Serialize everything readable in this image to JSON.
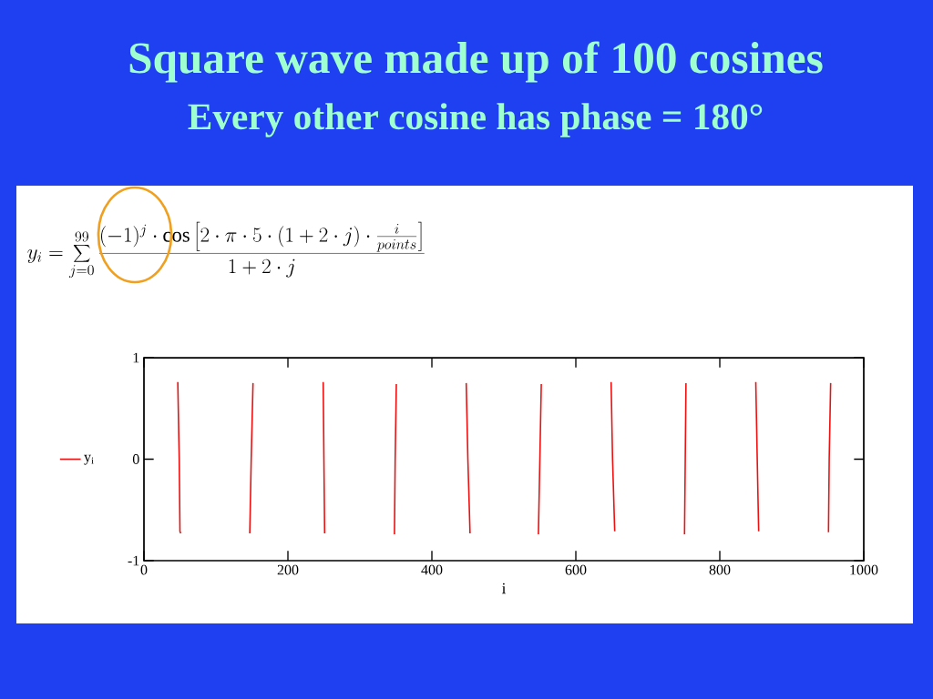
{
  "chart_data": {
    "type": "line",
    "title": "Square wave made up of 100 cosines",
    "subtitle": "Every other cosine has phase = 180°",
    "xlabel": "i",
    "annotations": [
      "y_{i} = \\sum_{j=0}^{99} \\frac{(-1)^{j}\\cdot\\cos\\left[2\\cdot\\pi\\cdot 5\\cdot(1+2\\cdot j)\\cdot\\frac{i}{points}\\right]}{1+2\\cdot j}"
    ],
    "series": [
      {
        "name": "y$_{i}$",
        "color": "#ee1111",
        "x": [
          47,
          49,
          50,
          51,
          100,
          151.5,
          149,
          147,
          200,
          249,
          250,
          251,
          300,
          350.6,
          349,
          348,
          400,
          447.7,
          450,
          453,
          500,
          552,
          550,
          548,
          600,
          649,
          651,
          654,
          700,
          753,
          752,
          751,
          800,
          850,
          852,
          854,
          900,
          954,
          952,
          951
        ],
        "values": [
          0.76,
          0,
          -0.71,
          -0.73,
          null,
          0.75,
          0,
          -0.73,
          null,
          0.76,
          0,
          -0.73,
          null,
          0.74,
          0,
          -0.74,
          null,
          0.75,
          0,
          -0.73,
          null,
          0.74,
          0,
          -0.74,
          null,
          0.76,
          0,
          -0.71,
          null,
          0.75,
          0,
          -0.74,
          null,
          0.76,
          0,
          -0.71,
          null,
          0.75,
          0,
          -0.72
        ]
      }
    ],
    "xlim": [
      0,
      1000
    ],
    "ylim": [
      -1,
      1
    ],
    "xticks": [
      0,
      200,
      400,
      600,
      800,
      1000
    ],
    "yticks": [
      -1,
      0,
      1
    ],
    "legend": "left",
    "grid": false,
    "marker": "none",
    "line_style": "solid"
  }
}
